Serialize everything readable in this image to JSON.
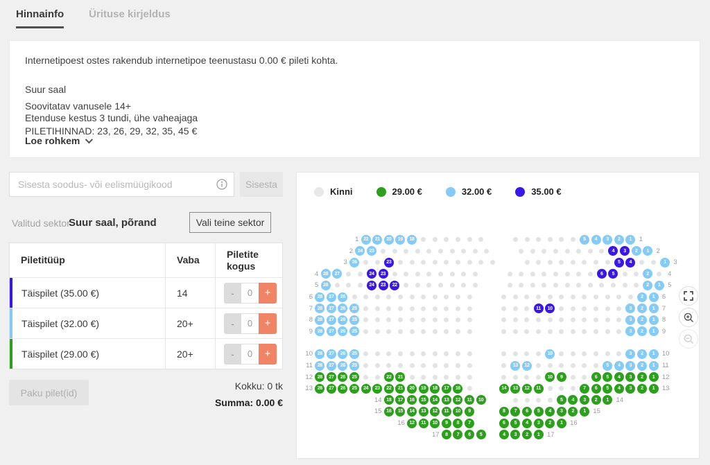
{
  "tabs": {
    "active": "Hinnainfo",
    "inactive": "Ürituse kirjeldus"
  },
  "info_card": {
    "service_fee_line": "Internetipoest ostes rakendub internetipoe teenustasu 0.00 € pileti kohta.",
    "hall": "Suur saal",
    "age_line": "Soovitatav vanusele 14+",
    "duration_line": "Etenduse kestus 3 tundi, ühe vaheajaga",
    "prices_line": "PILETIHINNAD: 23, 26, 29, 32, 35, 45 €",
    "read_more": "Loe rohkem"
  },
  "coupon": {
    "placeholder": "Sisesta soodus- või eelismüügikood",
    "submit_label": "Sisesta"
  },
  "sector": {
    "label": "Valitud sektor",
    "value": "Suur saal, põrand",
    "change_button": "Vali teine sektor"
  },
  "table": {
    "headers": [
      "Piletitüüp",
      "Vaba",
      "Piletite kogus"
    ],
    "stepper": {
      "minus": "-",
      "value": "0",
      "plus": "+"
    },
    "rows": [
      {
        "name": "Täispilet (35.00 €)",
        "available": "14",
        "bar_color": "#3b16e8"
      },
      {
        "name": "Täispilet (32.00 €)",
        "available": "20+",
        "bar_color": "#85cbf8"
      },
      {
        "name": "Täispilet (29.00 €)",
        "available": "20+",
        "bar_color": "#2ca01c"
      }
    ]
  },
  "offer_button": "Paku pilet(id)",
  "totals": {
    "count_line": "Kokku: 0 tk",
    "sum_line": "Summa: 0.00 €"
  },
  "map": {
    "legend": [
      {
        "label": "Kinni",
        "color": "#e8e8e8"
      },
      {
        "label": "29.00 €",
        "color": "#2ca01c"
      },
      {
        "label": "32.00 €",
        "color": "#85cbf8"
      },
      {
        "label": "35.00 €",
        "color": "#3b16e8"
      }
    ],
    "seat_colors": {
      "g": "#2ca01c",
      "b": "#85cbf8",
      "d": "#3b16e8",
      "x": "#e3e3e3"
    },
    "rows": [
      {
        "label": "1",
        "offset": 4,
        "cells": [
          "b22",
          "b21",
          "b20",
          "b19",
          "b18",
          "x",
          "x",
          "x",
          "x",
          "x",
          "x",
          "",
          "",
          "x",
          "x",
          "x",
          "x",
          "x",
          "x",
          "b5",
          "b4",
          "b3",
          "b2",
          "b1"
        ]
      },
      {
        "label": "2",
        "offset": 3.5,
        "cells": [
          "b24",
          "b23",
          "x",
          "x",
          "x",
          "x",
          "x",
          "x",
          "x",
          "x",
          "x",
          "x",
          "",
          "",
          "x",
          "x",
          "x",
          "x",
          "x",
          "x",
          "x",
          "x",
          "d4",
          "d3",
          "b2",
          "b1"
        ]
      },
      {
        "label": "3",
        "offset": 3,
        "cells": [
          "b26",
          "x",
          "x",
          "d23",
          "x",
          "x",
          "x",
          "x",
          "x",
          "x",
          "x",
          "x",
          "x",
          "",
          "",
          "x",
          "x",
          "x",
          "x",
          "x",
          "x",
          "x",
          "x",
          "d5",
          "d4",
          "x",
          "x",
          "b1"
        ]
      },
      {
        "label": "4",
        "offset": 0.5,
        "cells": [
          "b28",
          "b27",
          "x",
          "x",
          "d24",
          "d23",
          "x",
          "x",
          "x",
          "x",
          "x",
          "x",
          "x",
          "x",
          "",
          "",
          "x",
          "x",
          "x",
          "x",
          "x",
          "x",
          "x",
          "x",
          "d6",
          "d5",
          "x",
          "x",
          "b2",
          "x"
        ]
      },
      {
        "label": "5",
        "offset": 0.5,
        "cells": [
          "b28",
          "x",
          "x",
          "x",
          "d24",
          "d23",
          "d22",
          "x",
          "x",
          "x",
          "x",
          "x",
          "x",
          "x",
          "",
          "",
          "x",
          "x",
          "x",
          "x",
          "x",
          "x",
          "x",
          "x",
          "x",
          "x",
          "x",
          "x",
          "b2",
          "b1"
        ]
      },
      {
        "label": "6",
        "offset": 0,
        "cells": [
          "b28",
          "b27",
          "b26",
          "x",
          "x",
          "x",
          "x",
          "x",
          "x",
          "x",
          "x",
          "x",
          "x",
          "x",
          "",
          "",
          "x",
          "x",
          "x",
          "x",
          "x",
          "x",
          "x",
          "x",
          "x",
          "x",
          "x",
          "x",
          "b2",
          "b1"
        ]
      },
      {
        "label": "7",
        "offset": 0,
        "cells": [
          "b28",
          "b27",
          "b26",
          "b25",
          "x",
          "x",
          "x",
          "x",
          "x",
          "x",
          "x",
          "x",
          "x",
          "x",
          "",
          "",
          "x",
          "x",
          "x",
          "d11",
          "d10",
          "x",
          "x",
          "x",
          "x",
          "x",
          "x",
          "b3",
          "b2",
          "b1"
        ]
      },
      {
        "label": "8",
        "offset": 0,
        "cells": [
          "b28",
          "b27",
          "b26",
          "b25",
          "x",
          "x",
          "x",
          "x",
          "x",
          "x",
          "x",
          "x",
          "x",
          "x",
          "",
          "",
          "x",
          "x",
          "x",
          "x",
          "x",
          "x",
          "x",
          "x",
          "x",
          "x",
          "x",
          "b3",
          "b2",
          "b1"
        ]
      },
      {
        "label": "9",
        "offset": 0,
        "cells": [
          "b28",
          "b27",
          "b26",
          "b25",
          "x",
          "x",
          "x",
          "x",
          "x",
          "x",
          "x",
          "x",
          "x",
          "x",
          "",
          "",
          "x",
          "x",
          "x",
          "x",
          "x",
          "x",
          "x",
          "x",
          "x",
          "x",
          "x",
          "b3",
          "b2",
          "b1"
        ]
      },
      {
        "label": "10",
        "offset": 0,
        "cells": [
          "b28",
          "b27",
          "b26",
          "b25",
          "x",
          "x",
          "x",
          "x",
          "x",
          "x",
          "x",
          "x",
          "x",
          "x",
          "",
          "",
          "x",
          "x",
          "x",
          "x",
          "b10",
          "x",
          "x",
          "x",
          "x",
          "x",
          "x",
          "b3",
          "b2",
          "b1"
        ]
      },
      {
        "label": "11",
        "offset": 0,
        "cells": [
          "b28",
          "b27",
          "b26",
          "b25",
          "x",
          "x",
          "x",
          "x",
          "x",
          "x",
          "x",
          "x",
          "x",
          "x",
          "",
          "",
          "x",
          "b13",
          "b12",
          "x",
          "x",
          "x",
          "x",
          "x",
          "x",
          "b5",
          "b4",
          "b3",
          "b2",
          "b1"
        ]
      },
      {
        "label": "12",
        "offset": 0,
        "cells": [
          "g28",
          "g27",
          "g26",
          "g25",
          "x",
          "x",
          "g22",
          "g21",
          "x",
          "x",
          "x",
          "x",
          "x",
          "x",
          "",
          "",
          "x",
          "x",
          "x",
          "x",
          "g10",
          "g9",
          "x",
          "x",
          "g6",
          "g5",
          "g4",
          "g3",
          "g2",
          "g1"
        ]
      },
      {
        "label": "13",
        "offset": 0,
        "cells": [
          "g28",
          "g27",
          "g26",
          "g25",
          "g24",
          "g23",
          "g22",
          "g21",
          "g20",
          "g19",
          "g18",
          "g17",
          "g16",
          "x",
          "",
          "",
          "g14",
          "g13",
          "g12",
          "g11",
          "x",
          "x",
          "x",
          "g7",
          "g6",
          "g5",
          "g4",
          "g3",
          "g2",
          "g1"
        ]
      },
      {
        "label": "14",
        "offset": 6,
        "cells": [
          "g18",
          "g17",
          "g16",
          "g15",
          "g14",
          "g13",
          "g12",
          "g11",
          "g10",
          "",
          "",
          "x",
          "x",
          "x",
          "x",
          "g5",
          "g4",
          "g3",
          "g2",
          "g1"
        ]
      },
      {
        "label": "15",
        "offset": 6,
        "cells": [
          "g16",
          "g15",
          "g14",
          "g13",
          "g12",
          "g11",
          "g10",
          "g9",
          "",
          "",
          "g8",
          "g7",
          "g6",
          "g5",
          "g4",
          "g3",
          "g2",
          "g1"
        ]
      },
      {
        "label": "16",
        "offset": 8,
        "cells": [
          "g12",
          "g11",
          "g10",
          "g9",
          "g8",
          "g7",
          "",
          "",
          "g6",
          "g5",
          "g4",
          "g3",
          "g2",
          "g1"
        ]
      },
      {
        "label": "17",
        "offset": 11,
        "cells": [
          "g8",
          "g7",
          "g6",
          "g5",
          "",
          "g4",
          "g3",
          "g2",
          "g1"
        ]
      }
    ]
  }
}
